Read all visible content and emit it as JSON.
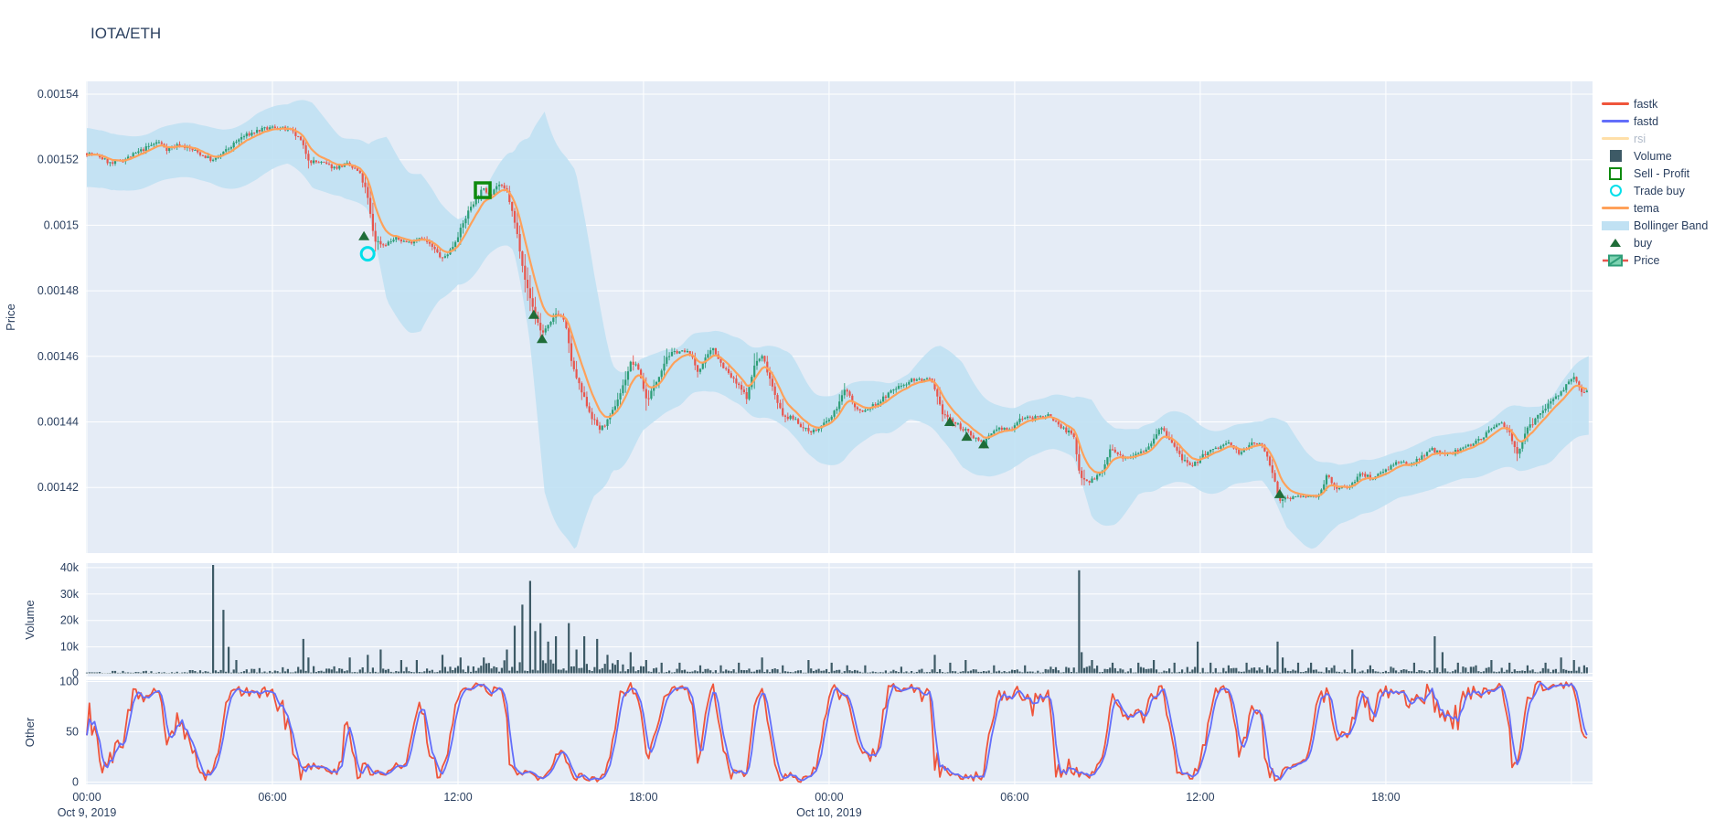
{
  "title": "IOTA/ETH",
  "colors": {
    "text": "#2a3f5f",
    "muted_text": "#b0bac9",
    "plot_bg": "#e5ecf6",
    "grid": "#ffffff",
    "candle_up": "#2e9e78",
    "candle_down": "#e8564e",
    "tema": "#ffa15a",
    "band": "#c0e1f3",
    "fastk": "#ef553b",
    "fastd": "#636efa",
    "rsi": "#ffdfa8",
    "volume": "#3d5a66",
    "buy_marker": "#1f6d38",
    "sell_profit": "#0e8a0e",
    "trade_buy": "#00dfea"
  },
  "legend": {
    "items": [
      {
        "label": "fastk",
        "type": "line",
        "color": "#ef553b"
      },
      {
        "label": "fastd",
        "type": "line",
        "color": "#636efa"
      },
      {
        "label": "rsi",
        "type": "line",
        "color": "#ffdfa8",
        "muted": true
      },
      {
        "label": "Volume",
        "type": "square",
        "color": "#3d5a66"
      },
      {
        "label": "Sell - Profit",
        "type": "open-square",
        "color": "#0e8a0e"
      },
      {
        "label": "Trade buy",
        "type": "open-circle",
        "color": "#00dfea"
      },
      {
        "label": "tema",
        "type": "line",
        "color": "#ffa15a"
      },
      {
        "label": "Bollinger Band",
        "type": "band",
        "color": "#c0e1f3"
      },
      {
        "label": "buy",
        "type": "triangle",
        "color": "#1f6d38"
      },
      {
        "label": "Price",
        "type": "candle",
        "color": "#2e9e78"
      }
    ]
  },
  "axes": {
    "price": {
      "title": "Price",
      "ticks": [
        {
          "v": 1540,
          "label": "0.00154"
        },
        {
          "v": 1520,
          "label": "0.00152"
        },
        {
          "v": 1500,
          "label": "0.0015"
        },
        {
          "v": 1480,
          "label": "0.00148"
        },
        {
          "v": 1460,
          "label": "0.00146"
        },
        {
          "v": 1440,
          "label": "0.00144"
        },
        {
          "v": 1420,
          "label": "0.00142"
        }
      ]
    },
    "volume": {
      "title": "Volume",
      "ticks": [
        {
          "v": 40,
          "label": "40k"
        },
        {
          "v": 30,
          "label": "30k"
        },
        {
          "v": 20,
          "label": "20k"
        },
        {
          "v": 10,
          "label": "10k"
        },
        {
          "v": 0,
          "label": "0"
        }
      ]
    },
    "other": {
      "title": "Other",
      "ticks": [
        {
          "v": 100,
          "label": "100"
        },
        {
          "v": 50,
          "label": "50"
        },
        {
          "v": 0,
          "label": "0"
        }
      ]
    },
    "x": {
      "ticks": [
        {
          "t": 0,
          "label": "00:00",
          "date": "Oct 9, 2019"
        },
        {
          "t": 6,
          "label": "06:00"
        },
        {
          "t": 12,
          "label": "12:00"
        },
        {
          "t": 18,
          "label": "18:00"
        },
        {
          "t": 24,
          "label": "00:00",
          "date": "Oct 10, 2019"
        },
        {
          "t": 30,
          "label": "06:00"
        },
        {
          "t": 36,
          "label": "12:00"
        },
        {
          "t": 42,
          "label": "18:00"
        },
        {
          "t": 48,
          "label": ""
        }
      ]
    }
  },
  "chart_data": {
    "type": "candlestick",
    "pair": "IOTA/ETH",
    "timeframe_minutes": 5,
    "x_unit": "hours since 2019-10-09 00:00",
    "x_range": [
      0,
      48.58
    ],
    "price_range_displayed": [
      0.0014,
      0.0015439
    ],
    "price_unit": "micro (value * 1e-6 = price)",
    "price_path": [
      [
        0,
        1522
      ],
      [
        0.4,
        1521
      ],
      [
        0.8,
        1518.6
      ],
      [
        1.3,
        1520.5
      ],
      [
        1.8,
        1523
      ],
      [
        2.3,
        1525.5
      ],
      [
        2.6,
        1523.2
      ],
      [
        3.0,
        1524.6
      ],
      [
        3.5,
        1522.6
      ],
      [
        4.1,
        1519.6
      ],
      [
        4.5,
        1522.8
      ],
      [
        5.0,
        1526.8
      ],
      [
        5.5,
        1528.8
      ],
      [
        6.1,
        1530
      ],
      [
        6.6,
        1528.8
      ],
      [
        6.9,
        1526
      ],
      [
        7.2,
        1519.6
      ],
      [
        7.6,
        1519
      ],
      [
        8.0,
        1517.6
      ],
      [
        8.4,
        1518.6
      ],
      [
        8.8,
        1516.2
      ],
      [
        9.05,
        1510
      ],
      [
        9.3,
        1495.5
      ],
      [
        9.6,
        1494
      ],
      [
        10.0,
        1496
      ],
      [
        10.4,
        1494.6
      ],
      [
        10.8,
        1496.6
      ],
      [
        11.2,
        1493
      ],
      [
        11.5,
        1489.6
      ],
      [
        11.8,
        1493
      ],
      [
        12.1,
        1499
      ],
      [
        12.4,
        1505.6
      ],
      [
        12.8,
        1511
      ],
      [
        13.05,
        1509.6
      ],
      [
        13.3,
        1512.6
      ],
      [
        13.6,
        1510
      ],
      [
        13.9,
        1498
      ],
      [
        14.2,
        1482
      ],
      [
        14.45,
        1474
      ],
      [
        14.7,
        1467
      ],
      [
        15.0,
        1470
      ],
      [
        15.2,
        1473.6
      ],
      [
        15.45,
        1471
      ],
      [
        15.7,
        1457
      ],
      [
        16.0,
        1449
      ],
      [
        16.35,
        1441
      ],
      [
        16.6,
        1437.6
      ],
      [
        16.9,
        1441
      ],
      [
        17.3,
        1450
      ],
      [
        17.6,
        1458.4
      ],
      [
        17.85,
        1456
      ],
      [
        18.1,
        1446.4
      ],
      [
        18.4,
        1452
      ],
      [
        18.75,
        1460
      ],
      [
        19.1,
        1461.6
      ],
      [
        19.5,
        1461
      ],
      [
        19.75,
        1455.4
      ],
      [
        20.0,
        1459
      ],
      [
        20.25,
        1462.6
      ],
      [
        20.5,
        1458
      ],
      [
        20.8,
        1454
      ],
      [
        21.1,
        1450.6
      ],
      [
        21.35,
        1447.4
      ],
      [
        21.6,
        1458
      ],
      [
        21.85,
        1460
      ],
      [
        22.2,
        1450
      ],
      [
        22.5,
        1441.6
      ],
      [
        22.9,
        1441
      ],
      [
        23.2,
        1437.6
      ],
      [
        23.55,
        1437.2
      ],
      [
        23.8,
        1439
      ],
      [
        24.1,
        1441.6
      ],
      [
        24.55,
        1450.4
      ],
      [
        24.85,
        1444
      ],
      [
        25.1,
        1443
      ],
      [
        25.6,
        1446
      ],
      [
        26.1,
        1450
      ],
      [
        26.7,
        1453
      ],
      [
        27.3,
        1452.6
      ],
      [
        27.65,
        1443
      ],
      [
        28.0,
        1440
      ],
      [
        28.45,
        1437
      ],
      [
        29.0,
        1433.4
      ],
      [
        29.4,
        1438
      ],
      [
        29.85,
        1437.6
      ],
      [
        30.2,
        1441.4
      ],
      [
        30.6,
        1441
      ],
      [
        31.1,
        1442.2
      ],
      [
        31.5,
        1438.4
      ],
      [
        31.9,
        1436
      ],
      [
        32.1,
        1424
      ],
      [
        32.4,
        1421.8
      ],
      [
        32.8,
        1424.2
      ],
      [
        33.1,
        1431.8
      ],
      [
        33.5,
        1428.6
      ],
      [
        33.9,
        1430.6
      ],
      [
        34.3,
        1432
      ],
      [
        34.7,
        1438.4
      ],
      [
        35.05,
        1434
      ],
      [
        35.4,
        1429
      ],
      [
        35.7,
        1425.8
      ],
      [
        36.1,
        1430
      ],
      [
        36.5,
        1431.8
      ],
      [
        36.9,
        1433.6
      ],
      [
        37.3,
        1430.2
      ],
      [
        37.7,
        1434
      ],
      [
        38.05,
        1432.4
      ],
      [
        38.3,
        1426
      ],
      [
        38.55,
        1415.6
      ],
      [
        38.8,
        1417
      ],
      [
        39.4,
        1417.2
      ],
      [
        39.8,
        1417.4
      ],
      [
        40.1,
        1423.6
      ],
      [
        40.35,
        1419.6
      ],
      [
        40.8,
        1420.2
      ],
      [
        41.2,
        1424.2
      ],
      [
        41.55,
        1422.8
      ],
      [
        41.9,
        1425
      ],
      [
        42.3,
        1427.4
      ],
      [
        42.8,
        1427
      ],
      [
        43.15,
        1429.6
      ],
      [
        43.5,
        1431.6
      ],
      [
        43.9,
        1429.8
      ],
      [
        44.3,
        1431
      ],
      [
        44.75,
        1433.2
      ],
      [
        45.15,
        1435.6
      ],
      [
        45.55,
        1438.8
      ],
      [
        45.75,
        1440.2
      ],
      [
        46.0,
        1436.6
      ],
      [
        46.25,
        1430.4
      ],
      [
        46.6,
        1438
      ],
      [
        47.0,
        1442.6
      ],
      [
        47.4,
        1447
      ],
      [
        47.8,
        1450.6
      ],
      [
        48.1,
        1453.6
      ],
      [
        48.35,
        1448.2
      ],
      [
        48.55,
        1450
      ]
    ],
    "bollinger_halfwidth": [
      [
        0,
        9
      ],
      [
        2,
        8
      ],
      [
        4,
        8.5
      ],
      [
        5.5,
        10
      ],
      [
        6.5,
        9
      ],
      [
        7.3,
        13
      ],
      [
        8.2,
        9
      ],
      [
        9.1,
        10
      ],
      [
        9.7,
        25
      ],
      [
        10.8,
        24
      ],
      [
        11.4,
        15
      ],
      [
        12,
        10
      ],
      [
        13,
        11
      ],
      [
        13.8,
        15
      ],
      [
        14.3,
        30
      ],
      [
        14.8,
        58
      ],
      [
        15.8,
        58
      ],
      [
        16.4,
        34
      ],
      [
        17,
        16
      ],
      [
        18,
        11
      ],
      [
        19,
        9
      ],
      [
        20,
        9
      ],
      [
        21,
        10
      ],
      [
        22,
        11
      ],
      [
        22.8,
        12
      ],
      [
        23.5,
        10
      ],
      [
        24.5,
        11
      ],
      [
        25.5,
        8
      ],
      [
        26.6,
        7
      ],
      [
        27.6,
        14
      ],
      [
        28.3,
        16
      ],
      [
        29,
        12
      ],
      [
        30,
        9
      ],
      [
        31,
        8
      ],
      [
        31.9,
        9
      ],
      [
        32.5,
        18
      ],
      [
        33.4,
        14
      ],
      [
        34,
        10
      ],
      [
        35,
        11
      ],
      [
        36,
        10
      ],
      [
        37,
        9
      ],
      [
        38,
        9
      ],
      [
        38.8,
        16
      ],
      [
        39.6,
        14
      ],
      [
        40.5,
        9
      ],
      [
        41.5,
        8
      ],
      [
        42.5,
        7
      ],
      [
        43.5,
        8
      ],
      [
        44.5,
        7
      ],
      [
        45.5,
        8
      ],
      [
        46.3,
        10
      ],
      [
        47,
        9
      ],
      [
        48,
        11
      ],
      [
        48.55,
        12
      ]
    ],
    "volume_k": {
      "base_envelope": [
        [
          0,
          1.0
        ],
        [
          3,
          1.0
        ],
        [
          4,
          1.6
        ],
        [
          6,
          2.2
        ],
        [
          8,
          3.0
        ],
        [
          10,
          2.6
        ],
        [
          12,
          3.0
        ],
        [
          13.5,
          5
        ],
        [
          14.5,
          7
        ],
        [
          16,
          5
        ],
        [
          17.5,
          3.5
        ],
        [
          19,
          2.2
        ],
        [
          21,
          1.8
        ],
        [
          23,
          2.0
        ],
        [
          25,
          1.5
        ],
        [
          27,
          1.8
        ],
        [
          29,
          1.6
        ],
        [
          31,
          2.2
        ],
        [
          32.5,
          3.0
        ],
        [
          34,
          2.4
        ],
        [
          36,
          2.6
        ],
        [
          38,
          2.4
        ],
        [
          39.5,
          2.2
        ],
        [
          41,
          2.4
        ],
        [
          43,
          2.6
        ],
        [
          44.5,
          2.8
        ],
        [
          46,
          2.2
        ],
        [
          47.5,
          3.0
        ],
        [
          48.5,
          2.6
        ]
      ],
      "spikes": [
        [
          4.08,
          41
        ],
        [
          4.4,
          24
        ],
        [
          4.62,
          10
        ],
        [
          4.8,
          5
        ],
        [
          7.0,
          13
        ],
        [
          7.15,
          6
        ],
        [
          8.5,
          6
        ],
        [
          9.1,
          7
        ],
        [
          9.5,
          9
        ],
        [
          10.2,
          5
        ],
        [
          10.7,
          5
        ],
        [
          11.5,
          7
        ],
        [
          12.1,
          6
        ],
        [
          12.8,
          6
        ],
        [
          13.6,
          9
        ],
        [
          13.85,
          18
        ],
        [
          14.05,
          26
        ],
        [
          14.3,
          35
        ],
        [
          14.5,
          16
        ],
        [
          14.7,
          19
        ],
        [
          14.95,
          12
        ],
        [
          15.2,
          14
        ],
        [
          15.55,
          19
        ],
        [
          15.8,
          9
        ],
        [
          16.1,
          14
        ],
        [
          16.5,
          13
        ],
        [
          16.8,
          7
        ],
        [
          17.2,
          5
        ],
        [
          17.6,
          8
        ],
        [
          18.1,
          5
        ],
        [
          18.6,
          4
        ],
        [
          19.2,
          4
        ],
        [
          19.8,
          3
        ],
        [
          20.5,
          3
        ],
        [
          21.1,
          4
        ],
        [
          21.8,
          6
        ],
        [
          22.5,
          3
        ],
        [
          23.3,
          5
        ],
        [
          24.1,
          4
        ],
        [
          24.6,
          3
        ],
        [
          25.2,
          3
        ],
        [
          26.3,
          2.5
        ],
        [
          27.4,
          7
        ],
        [
          27.9,
          4
        ],
        [
          28.4,
          5
        ],
        [
          29.3,
          3
        ],
        [
          30.3,
          3
        ],
        [
          31.2,
          2.5
        ],
        [
          32.05,
          39
        ],
        [
          32.2,
          8
        ],
        [
          32.5,
          5
        ],
        [
          33.2,
          4
        ],
        [
          34.0,
          4
        ],
        [
          34.5,
          5
        ],
        [
          35.2,
          4
        ],
        [
          35.9,
          12
        ],
        [
          36.3,
          4
        ],
        [
          36.9,
          3
        ],
        [
          37.5,
          4
        ],
        [
          38.2,
          3
        ],
        [
          38.5,
          12
        ],
        [
          38.7,
          6
        ],
        [
          39.2,
          4
        ],
        [
          39.6,
          4
        ],
        [
          40.3,
          3
        ],
        [
          40.9,
          9
        ],
        [
          41.5,
          3
        ],
        [
          42.2,
          2.5
        ],
        [
          42.9,
          4
        ],
        [
          43.6,
          14
        ],
        [
          43.8,
          8
        ],
        [
          44.3,
          4
        ],
        [
          44.9,
          3
        ],
        [
          45.4,
          5
        ],
        [
          46.0,
          4
        ],
        [
          46.6,
          3
        ],
        [
          47.2,
          4
        ],
        [
          47.7,
          6
        ],
        [
          48.1,
          5
        ],
        [
          48.4,
          3
        ]
      ]
    },
    "markers": {
      "buy": [
        [
          8.96,
          1496.7
        ],
        [
          14.45,
          1472.7
        ],
        [
          14.72,
          1465.3
        ],
        [
          27.9,
          1440
        ],
        [
          28.45,
          1435.5
        ],
        [
          29.0,
          1433.2
        ],
        [
          38.57,
          1418
        ]
      ],
      "trade_buy": [
        [
          9.08,
          1491.3
        ]
      ],
      "sell_profit": [
        [
          12.8,
          1510.7
        ]
      ]
    },
    "oscillator": {
      "names": [
        "fastk",
        "fastd"
      ],
      "fastk_period": 14,
      "fastd_smooth": 3,
      "range": [
        0,
        100
      ]
    }
  }
}
